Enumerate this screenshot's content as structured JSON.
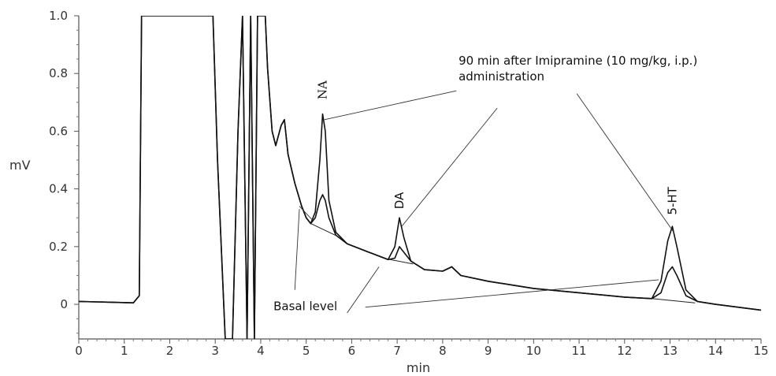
{
  "chart_data": {
    "type": "line",
    "xlabel": "min",
    "ylabel": "mV",
    "xlim": [
      0,
      15
    ],
    "ylim": [
      -0.12,
      1.0
    ],
    "x_ticks": [
      0,
      1,
      2,
      3,
      4,
      5,
      6,
      7,
      8,
      9,
      10,
      11,
      12,
      13,
      14,
      15
    ],
    "x_tick_labels": [
      "0",
      "1",
      "2",
      "3",
      "4",
      "5",
      "6",
      "7",
      "8",
      "9",
      "10",
      "11",
      "12",
      "13",
      "14",
      "15"
    ],
    "y_ticks": [
      0,
      0.2,
      0.4,
      0.6,
      0.8,
      1.0
    ],
    "y_tick_labels": [
      "0",
      "0.2",
      "0.4",
      "0.6",
      "0.8",
      "1.0"
    ],
    "grid": false,
    "series": [
      {
        "points": [
          [
            0,
            0.01
          ],
          [
            1.2,
            0.005
          ],
          [
            1.33,
            0.03
          ],
          [
            1.38,
            1.0
          ],
          [
            2.95,
            1.0
          ],
          [
            3.05,
            0.5
          ],
          [
            3.22,
            -0.12
          ],
          [
            3.38,
            -0.12
          ],
          [
            3.5,
            0.6
          ],
          [
            3.6,
            1.0
          ],
          [
            3.7,
            -0.12
          ],
          [
            3.78,
            1.0
          ],
          [
            3.86,
            -0.12
          ],
          [
            3.93,
            1.0
          ],
          [
            4.1,
            1.0
          ],
          [
            4.15,
            0.82
          ],
          [
            4.25,
            0.6
          ],
          [
            4.33,
            0.55
          ],
          [
            4.45,
            0.62
          ],
          [
            4.52,
            0.64
          ],
          [
            4.6,
            0.52
          ],
          [
            4.75,
            0.42
          ],
          [
            4.9,
            0.34
          ],
          [
            5.0,
            0.3
          ],
          [
            5.1,
            0.28
          ],
          [
            5.2,
            0.32
          ],
          [
            5.3,
            0.5
          ],
          [
            5.36,
            0.66
          ],
          [
            5.42,
            0.6
          ],
          [
            5.5,
            0.36
          ],
          [
            5.65,
            0.25
          ],
          [
            5.9,
            0.21
          ],
          [
            6.3,
            0.185
          ],
          [
            6.8,
            0.155
          ],
          [
            6.95,
            0.2
          ],
          [
            7.05,
            0.3
          ],
          [
            7.15,
            0.23
          ],
          [
            7.3,
            0.15
          ],
          [
            7.6,
            0.12
          ],
          [
            8.0,
            0.115
          ],
          [
            8.2,
            0.13
          ],
          [
            8.4,
            0.1
          ],
          [
            9.0,
            0.08
          ],
          [
            10.0,
            0.055
          ],
          [
            11.0,
            0.04
          ],
          [
            12.0,
            0.025
          ],
          [
            12.6,
            0.02
          ],
          [
            12.8,
            0.08
          ],
          [
            12.95,
            0.22
          ],
          [
            13.05,
            0.27
          ],
          [
            13.15,
            0.2
          ],
          [
            13.35,
            0.05
          ],
          [
            13.6,
            0.01
          ],
          [
            14.0,
            0.0
          ],
          [
            15.0,
            -0.02
          ]
        ]
      },
      {
        "points": [
          [
            0,
            0.01
          ],
          [
            1.2,
            0.005
          ],
          [
            1.33,
            0.03
          ],
          [
            1.38,
            1.0
          ],
          [
            2.95,
            1.0
          ],
          [
            3.05,
            0.5
          ],
          [
            3.22,
            -0.12
          ],
          [
            3.38,
            -0.12
          ],
          [
            3.5,
            0.6
          ],
          [
            3.6,
            1.0
          ],
          [
            3.7,
            -0.12
          ],
          [
            3.78,
            1.0
          ],
          [
            3.86,
            -0.12
          ],
          [
            3.93,
            1.0
          ],
          [
            4.1,
            1.0
          ],
          [
            4.15,
            0.82
          ],
          [
            4.25,
            0.6
          ],
          [
            4.33,
            0.55
          ],
          [
            4.45,
            0.62
          ],
          [
            4.52,
            0.64
          ],
          [
            4.6,
            0.52
          ],
          [
            4.75,
            0.42
          ],
          [
            4.9,
            0.34
          ],
          [
            5.0,
            0.3
          ],
          [
            5.1,
            0.28
          ],
          [
            5.2,
            0.3
          ],
          [
            5.3,
            0.36
          ],
          [
            5.36,
            0.38
          ],
          [
            5.42,
            0.36
          ],
          [
            5.5,
            0.3
          ],
          [
            5.65,
            0.24
          ],
          [
            5.9,
            0.21
          ],
          [
            6.3,
            0.185
          ],
          [
            6.8,
            0.155
          ],
          [
            6.95,
            0.16
          ],
          [
            7.05,
            0.2
          ],
          [
            7.15,
            0.18
          ],
          [
            7.3,
            0.15
          ],
          [
            7.6,
            0.12
          ],
          [
            8.0,
            0.115
          ],
          [
            8.2,
            0.13
          ],
          [
            8.4,
            0.1
          ],
          [
            9.0,
            0.08
          ],
          [
            10.0,
            0.055
          ],
          [
            11.0,
            0.04
          ],
          [
            12.0,
            0.025
          ],
          [
            12.6,
            0.02
          ],
          [
            12.8,
            0.04
          ],
          [
            12.95,
            0.11
          ],
          [
            13.05,
            0.13
          ],
          [
            13.15,
            0.1
          ],
          [
            13.35,
            0.03
          ],
          [
            13.6,
            0.01
          ],
          [
            14.0,
            0.0
          ],
          [
            15.0,
            -0.02
          ]
        ]
      }
    ],
    "peak_labels": [
      {
        "text": "NA",
        "x": 5.36,
        "y": 0.71
      },
      {
        "text": "DA",
        "x": 7.05,
        "y": 0.33
      },
      {
        "text": "5-HT",
        "x": 13.05,
        "y": 0.31
      }
    ],
    "annotations": [
      {
        "lines": [
          "90 min after Imipramine (10 mg/kg, i.p.)",
          "administration"
        ],
        "x": 8.35,
        "y": 0.83,
        "pointers": [
          {
            "from": [
              8.3,
              0.74
            ],
            "to": [
              5.4,
              0.64
            ]
          },
          {
            "from": [
              9.2,
              0.68
            ],
            "to": [
              7.1,
              0.27
            ]
          },
          {
            "from": [
              10.95,
              0.73
            ],
            "to": [
              13.08,
              0.25
            ]
          }
        ]
      },
      {
        "lines": [
          "Basal level"
        ],
        "x": 4.28,
        "y": -0.02,
        "pointers": [
          {
            "from": [
              4.85,
              0.34
            ],
            "to": [
              5.15,
              0.29
            ]
          },
          {
            "from": [
              4.75,
              0.05
            ],
            "to": [
              4.85,
              0.33
            ]
          },
          {
            "from": [
              5.9,
              -0.03
            ],
            "to": [
              6.6,
              0.13
            ]
          },
          {
            "from": [
              6.3,
              -0.01
            ],
            "to": [
              12.75,
              0.085
            ]
          }
        ]
      }
    ],
    "baselines": [
      {
        "from": [
          5.1,
          0.28
        ],
        "to": [
          5.7,
          0.235
        ]
      },
      {
        "from": [
          6.85,
          0.155
        ],
        "to": [
          7.35,
          0.14
        ]
      },
      {
        "from": [
          12.6,
          0.02
        ],
        "to": [
          13.55,
          0.005
        ]
      }
    ]
  }
}
